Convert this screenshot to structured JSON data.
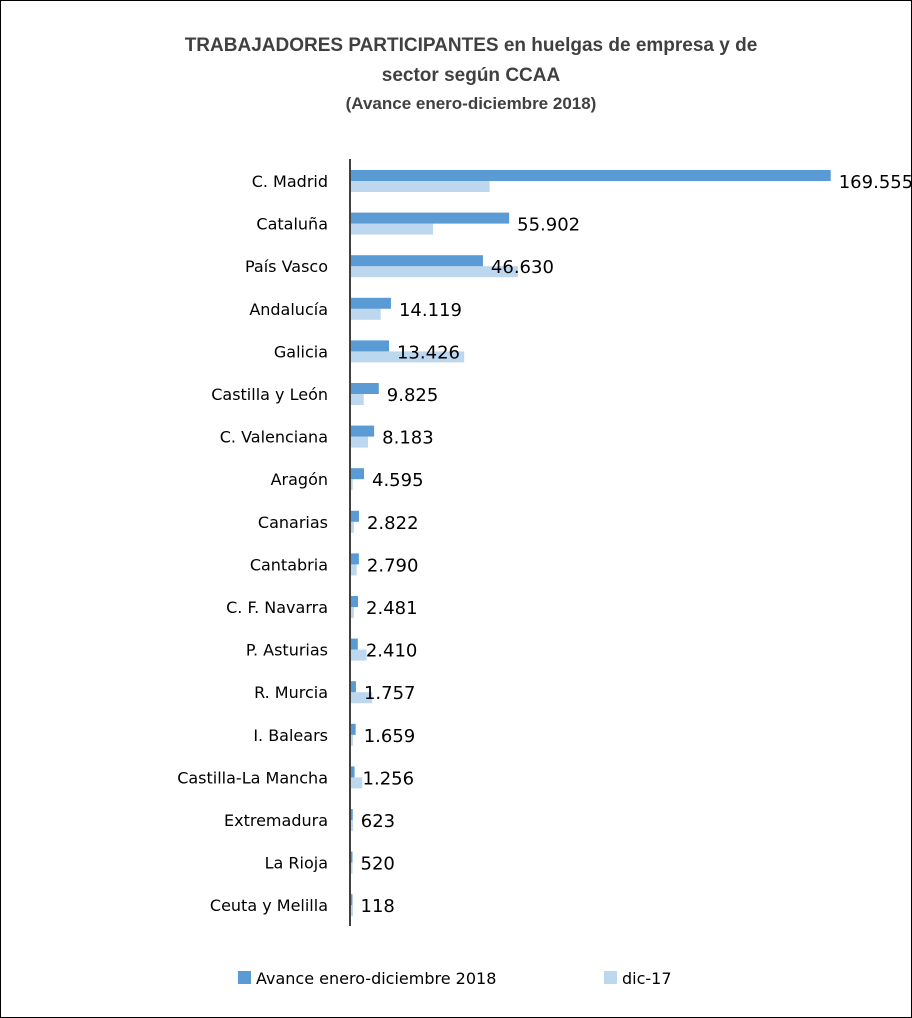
{
  "chart_data": {
    "type": "bar",
    "orientation": "horizontal",
    "title_line1": "TRABAJADORES  PARTICIPANTES  en huelgas de empresa y de",
    "title_line2": "sector según CCAA",
    "subtitle": "(Avance enero-diciembre 2018)",
    "categories": [
      "C. Madrid",
      "Cataluña",
      "País Vasco",
      "Andalucía",
      "Galicia",
      "Castilla y León",
      "C. Valenciana",
      "Aragón",
      "Canarias",
      "Cantabria",
      "C. F. Navarra",
      "P. Asturias",
      "R. Murcia",
      "I. Balears",
      "Castilla-La Mancha",
      "Extremadura",
      "La Rioja",
      "Ceuta y Melilla"
    ],
    "series": [
      {
        "name": "Avance enero-diciembre  2018",
        "color": "#5B9BD5",
        "values": [
          169555,
          55902,
          46630,
          14119,
          13426,
          9825,
          8183,
          4595,
          2822,
          2790,
          2481,
          2410,
          1757,
          1659,
          1256,
          623,
          520,
          118
        ],
        "labels": [
          "169.555",
          "55.902",
          "46.630",
          "14.119",
          "13.426",
          "9.825",
          "8.183",
          "4.595",
          "2.822",
          "2.790",
          "2.481",
          "2.410",
          "1.757",
          "1.659",
          "1.256",
          "623",
          "520",
          "118"
        ]
      },
      {
        "name": "dic-17",
        "color": "#BDD7EE",
        "values": [
          49000,
          29000,
          59000,
          10500,
          40000,
          4500,
          6000,
          600,
          1000,
          2000,
          1000,
          5500,
          7500,
          700,
          4000,
          700,
          500,
          700
        ]
      }
    ],
    "xlim": [
      0,
      170000
    ],
    "legend_position": "bottom"
  }
}
